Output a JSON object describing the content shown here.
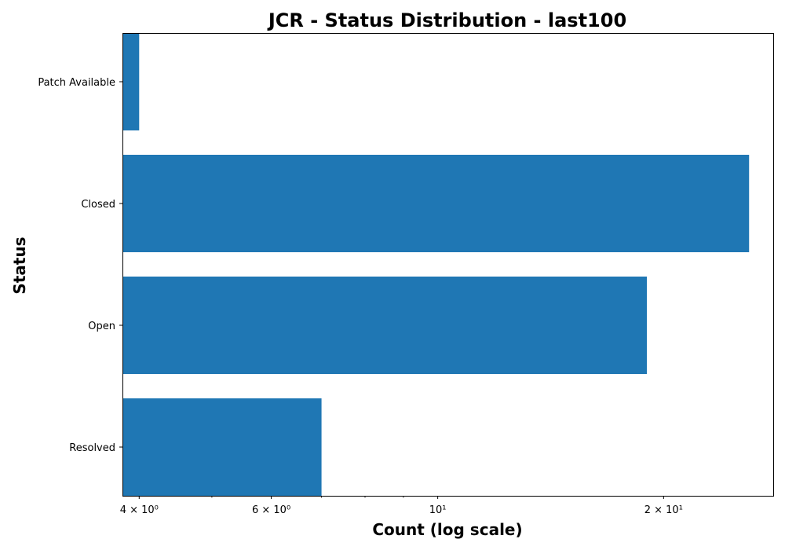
{
  "chart_data": {
    "type": "bar",
    "orientation": "horizontal",
    "title": "JCR - Status Distribution - last100",
    "xlabel": "Count (log scale)",
    "ylabel": "Status",
    "x_scale": "log",
    "xlim": [
      3.8,
      28
    ],
    "categories": [
      "Patch Available",
      "Closed",
      "Open",
      "Resolved"
    ],
    "values": [
      4,
      26,
      19,
      7
    ],
    "bar_color": "#1f77b4",
    "x_major_ticks": [
      {
        "value": 4,
        "label": "4 × 10⁰"
      },
      {
        "value": 6,
        "label": "6 × 10⁰"
      },
      {
        "value": 10,
        "label": "10¹"
      },
      {
        "value": 20,
        "label": "2 × 10¹"
      }
    ],
    "x_minor_ticks": [
      5,
      7,
      8,
      9
    ],
    "grid": false,
    "legend": "none"
  }
}
